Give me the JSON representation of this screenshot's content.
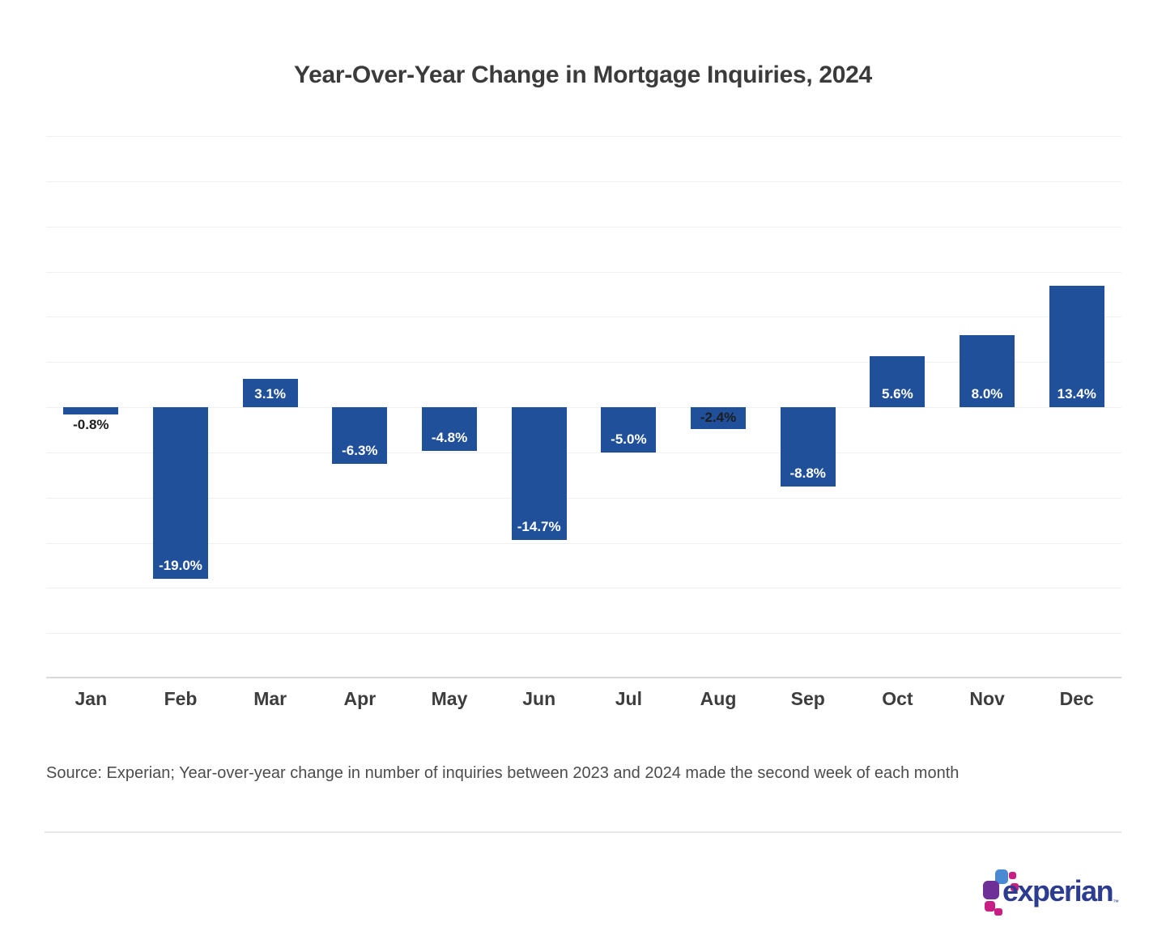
{
  "chart_data": {
    "type": "bar",
    "title": "Year-Over-Year Change in Mortgage Inquiries, 2024",
    "categories": [
      "Jan",
      "Feb",
      "Mar",
      "Apr",
      "May",
      "Jun",
      "Jul",
      "Aug",
      "Sep",
      "Oct",
      "Nov",
      "Dec"
    ],
    "values": [
      -0.8,
      -19.0,
      3.1,
      -6.3,
      -4.8,
      -14.7,
      -5.0,
      -2.4,
      -8.8,
      5.6,
      8.0,
      13.4
    ],
    "value_labels": [
      "-0.8%",
      "-19.0%",
      "3.1%",
      "-6.3%",
      "-4.8%",
      "-14.7%",
      "-5.0%",
      "-2.4%",
      "-8.8%",
      "5.6%",
      "8.0%",
      "13.4%"
    ],
    "xlabel": "",
    "ylabel": "",
    "ylim": [
      -30,
      30
    ],
    "grid_step": 5,
    "grid": true,
    "y_tick_labels_shown": false,
    "legend": "none",
    "bar_color": "#21509b",
    "label_color_inside": "#ffffff",
    "label_color_dark": "#1d1d1d",
    "grid_color": "#f0f0f0",
    "axis_line_color": "#d9d9d9"
  },
  "source": {
    "text": "Source: Experian; Year-over-year change in number of inquiries between 2023 and 2024 made the second week of each month"
  },
  "logo": {
    "text": "experian",
    "tm": "™",
    "text_color": "#2c3c90",
    "square_colors": {
      "blue": "#4a89d3",
      "purple": "#6e3096",
      "magenta": "#c91e83"
    }
  }
}
